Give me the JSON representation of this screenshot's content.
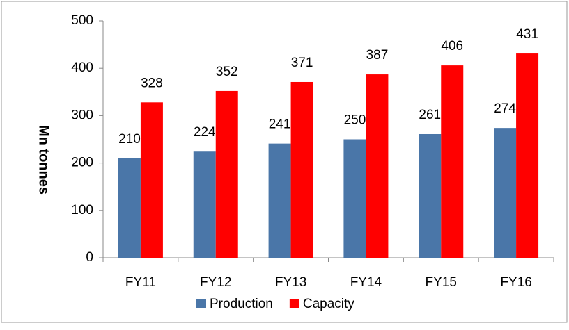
{
  "chart_data": {
    "type": "bar",
    "y_label": "Mn tonnes",
    "categories": [
      "FY11",
      "FY12",
      "FY13",
      "FY14",
      "FY15",
      "FY16"
    ],
    "series": [
      {
        "name": "Production",
        "color": "#4a76a8",
        "values": [
          210,
          224,
          241,
          250,
          261,
          274
        ]
      },
      {
        "name": "Capacity",
        "color": "#ff0000",
        "values": [
          328,
          352,
          371,
          387,
          406,
          431
        ]
      }
    ],
    "ylim": [
      0,
      500
    ],
    "yticks": [
      0,
      100,
      200,
      300,
      400,
      500
    ],
    "grid": false,
    "legend": "bottom"
  }
}
